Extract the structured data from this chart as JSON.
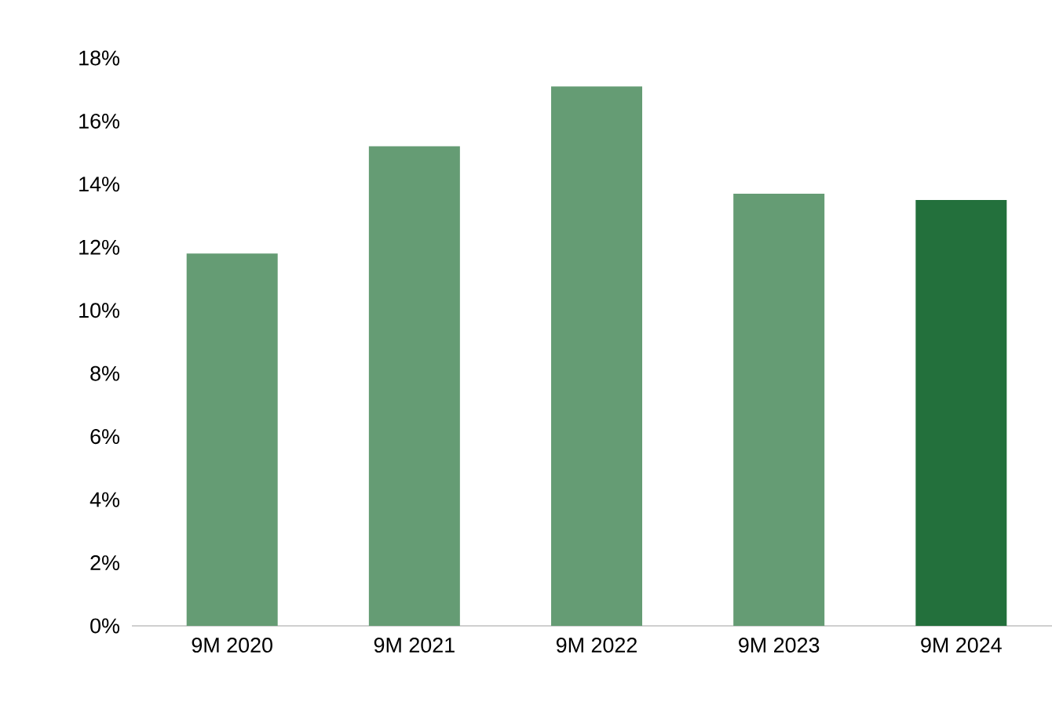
{
  "chart_data": {
    "type": "bar",
    "categories": [
      "9M 2020",
      "9M 2021",
      "9M 2022",
      "9M 2023",
      "9M 2024"
    ],
    "values": [
      11.8,
      15.2,
      17.1,
      13.7,
      13.5
    ],
    "colors": [
      "#659c74",
      "#659c74",
      "#659c74",
      "#659c74",
      "#23703c"
    ],
    "ylim": [
      0,
      18
    ],
    "yticks": [
      {
        "value": 0,
        "label": "0%"
      },
      {
        "value": 2,
        "label": "2%"
      },
      {
        "value": 4,
        "label": "4%"
      },
      {
        "value": 6,
        "label": "6%"
      },
      {
        "value": 8,
        "label": "8%"
      },
      {
        "value": 10,
        "label": "10%"
      },
      {
        "value": 12,
        "label": "12%"
      },
      {
        "value": 14,
        "label": "14%"
      },
      {
        "value": 16,
        "label": "16%"
      },
      {
        "value": 18,
        "label": "18%"
      }
    ],
    "grid": false
  }
}
